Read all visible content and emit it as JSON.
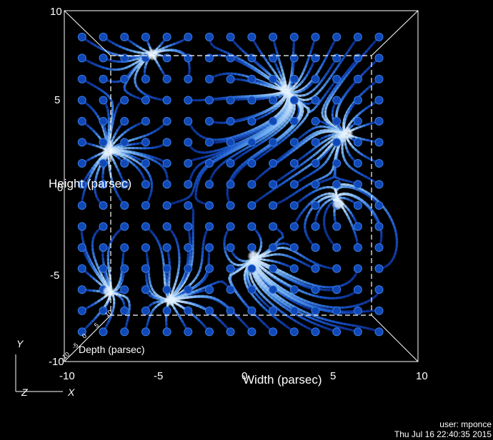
{
  "chart_data": {
    "type": "streamline-3d",
    "xlabel": "Width (parsec)",
    "ylabel": "Height (parsec)",
    "zlabel": "Depth (parsec)",
    "xlim": [
      -10,
      10
    ],
    "ylim": [
      -10,
      10
    ],
    "zlim": [
      -10,
      10
    ],
    "x_ticks": [
      "-10",
      "-5",
      "0",
      "5",
      "10"
    ],
    "y_ticks": [
      "10",
      "5",
      "0",
      "-5",
      "-10"
    ],
    "z_ticks": [
      "10",
      "5",
      "0",
      "-5",
      "-10"
    ],
    "seed_spacing": 1.2,
    "seed_range": [
      -9,
      8.5
    ],
    "colormap": [
      "#000a3a",
      "#0a2a8a",
      "#1a5ad0",
      "#6aaaf0",
      "#e8f4ff"
    ],
    "sources": [
      {
        "x": -7.5,
        "y": 2.0
      },
      {
        "x": 6.0,
        "y": 3.0
      },
      {
        "x": 2.5,
        "y": 5.5
      },
      {
        "x": -5.0,
        "y": 7.5
      },
      {
        "x": -7.5,
        "y": -6.0
      },
      {
        "x": -4.0,
        "y": -6.5
      },
      {
        "x": 0.7,
        "y": -4.0
      },
      {
        "x": 5.5,
        "y": -1.0
      }
    ],
    "sinks": [
      {
        "x": -3.5,
        "y": 5.0
      },
      {
        "x": 0.0,
        "y": -2.0
      },
      {
        "x": -6.0,
        "y": -2.0
      },
      {
        "x": 6.5,
        "y": -4.0
      }
    ],
    "axes_triad": {
      "x": "X",
      "y": "Y",
      "z": "Z"
    }
  },
  "annotations": {
    "user": "user: mponce",
    "timestamp": "Thu Jul 16 22:40:35 2015"
  }
}
